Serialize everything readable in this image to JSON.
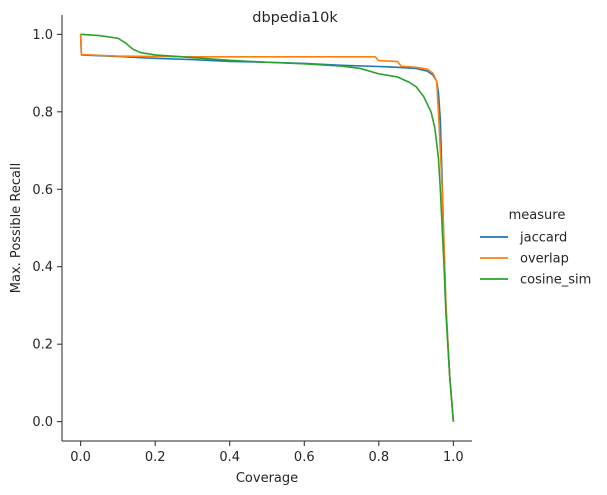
{
  "chart_data": {
    "type": "line",
    "title": "dbpedia10k",
    "xlabel": "Coverage",
    "ylabel": "Max. Possible Recall",
    "xlim": [
      -0.05,
      1.05
    ],
    "ylim": [
      -0.05,
      1.05
    ],
    "xticks": [
      0.0,
      0.2,
      0.4,
      0.6,
      0.8,
      1.0
    ],
    "xtick_labels": [
      "0.0",
      "0.2",
      "0.4",
      "0.6",
      "0.8",
      "1.0"
    ],
    "yticks": [
      0.0,
      0.2,
      0.4,
      0.6,
      0.8,
      1.0
    ],
    "ytick_labels": [
      "0.0",
      "0.2",
      "0.4",
      "0.6",
      "0.8",
      "1.0"
    ],
    "grid": false,
    "legend": {
      "title": "measure",
      "placement": "right"
    },
    "series": [
      {
        "name": "jaccard",
        "color": "#1f77b4",
        "x": [
          0.0,
          0.002,
          0.05,
          0.1,
          0.2,
          0.3,
          0.4,
          0.5,
          0.6,
          0.7,
          0.8,
          0.85,
          0.9,
          0.93,
          0.945,
          0.955,
          0.96,
          0.965,
          0.97,
          0.975,
          0.98,
          0.99,
          1.0
        ],
        "y": [
          1.0,
          0.947,
          0.945,
          0.943,
          0.938,
          0.935,
          0.93,
          0.928,
          0.925,
          0.92,
          0.917,
          0.915,
          0.912,
          0.905,
          0.895,
          0.88,
          0.85,
          0.78,
          0.62,
          0.45,
          0.3,
          0.12,
          0.0
        ]
      },
      {
        "name": "overlap",
        "color": "#ff7f0e",
        "x": [
          0.0,
          0.002,
          0.05,
          0.1,
          0.2,
          0.3,
          0.4,
          0.5,
          0.6,
          0.7,
          0.79,
          0.8,
          0.85,
          0.86,
          0.9,
          0.93,
          0.945,
          0.955,
          0.96,
          0.965,
          0.97,
          0.975,
          0.98,
          0.99,
          1.0
        ],
        "y": [
          1.0,
          0.948,
          0.946,
          0.944,
          0.943,
          0.942,
          0.942,
          0.942,
          0.942,
          0.942,
          0.942,
          0.932,
          0.93,
          0.918,
          0.915,
          0.91,
          0.9,
          0.88,
          0.8,
          0.7,
          0.6,
          0.45,
          0.3,
          0.12,
          0.0
        ]
      },
      {
        "name": "cosine_sim",
        "color": "#2ca02c",
        "x": [
          0.0,
          0.05,
          0.1,
          0.12,
          0.14,
          0.16,
          0.2,
          0.3,
          0.4,
          0.5,
          0.6,
          0.7,
          0.75,
          0.8,
          0.85,
          0.88,
          0.9,
          0.92,
          0.94,
          0.95,
          0.96,
          0.965,
          0.97,
          0.975,
          0.98,
          0.99,
          1.0
        ],
        "y": [
          1.0,
          0.997,
          0.99,
          0.978,
          0.962,
          0.953,
          0.947,
          0.94,
          0.933,
          0.928,
          0.924,
          0.918,
          0.912,
          0.898,
          0.89,
          0.877,
          0.865,
          0.84,
          0.8,
          0.76,
          0.68,
          0.6,
          0.5,
          0.4,
          0.28,
          0.12,
          0.0
        ]
      }
    ]
  }
}
